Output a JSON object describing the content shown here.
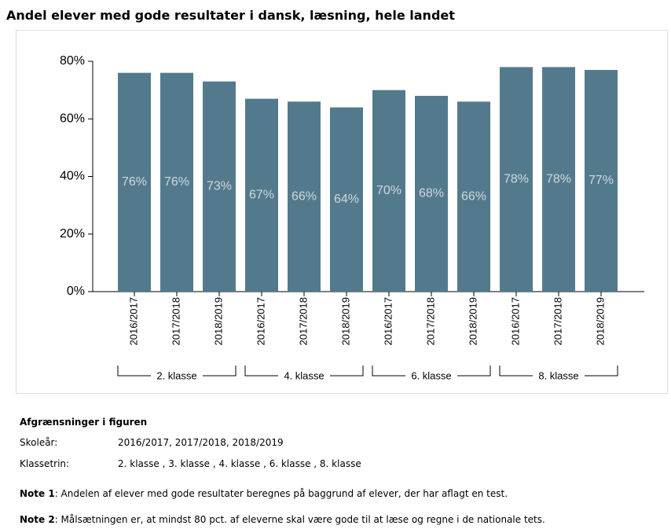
{
  "chart_data": {
    "type": "bar",
    "title": "Andel elever med gode resultater i dansk, læsning, hele landet",
    "categories": [
      "2016/2017",
      "2017/2018",
      "2018/2019",
      "2016/2017",
      "2017/2018",
      "2018/2019",
      "2016/2017",
      "2017/2018",
      "2018/2019",
      "2016/2017",
      "2017/2018",
      "2018/2019"
    ],
    "groups": [
      "2. klasse",
      "4. klasse",
      "6. klasse",
      "8. klasse"
    ],
    "values": [
      76,
      76,
      73,
      67,
      66,
      64,
      70,
      68,
      66,
      78,
      78,
      77
    ],
    "value_labels": [
      "76%",
      "76%",
      "73%",
      "67%",
      "66%",
      "64%",
      "70%",
      "68%",
      "66%",
      "78%",
      "78%",
      "77%"
    ],
    "color": "#537a8c",
    "ylim": [
      0,
      80
    ],
    "yticks": [
      {
        "value": 0,
        "label": "0%"
      },
      {
        "value": 20,
        "label": "20%"
      },
      {
        "value": 40,
        "label": "40%"
      },
      {
        "value": 60,
        "label": "60%"
      },
      {
        "value": 80,
        "label": "80%"
      }
    ]
  },
  "filters": {
    "heading": "Afgrænsninger i figuren",
    "rows": [
      {
        "label": "Skoleår:",
        "value": "2016/2017, 2017/2018, 2018/2019"
      },
      {
        "label": "Klassetrin:",
        "value": "2. klasse ,  3. klasse ,  4. klasse ,  6. klasse ,  8. klasse"
      }
    ]
  },
  "notes": [
    {
      "label": "Note 1",
      "text": ": Andelen af elever med gode resultater beregnes på baggrund af elever, der har aflagt en test."
    },
    {
      "label": "Note 2",
      "text": ": Målsætningen er, at mindst 80 pct. af eleverne skal være gode til at læse og regne i de nationale tets."
    }
  ]
}
